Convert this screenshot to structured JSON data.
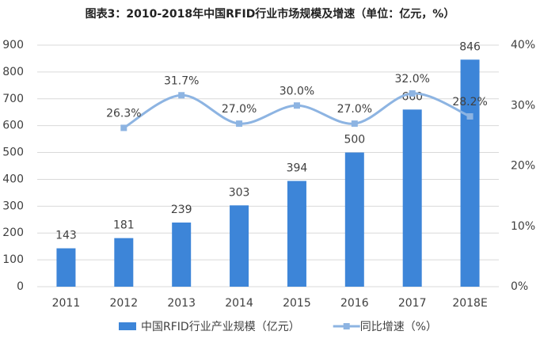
{
  "chart_data": {
    "type": "combo",
    "title": "图表3：2010-2018年中国RFID行业市场规模及增速（单位：亿元，%）",
    "categories": [
      "2011",
      "2012",
      "2013",
      "2014",
      "2015",
      "2016",
      "2017",
      "2018E"
    ],
    "series": [
      {
        "name": "中国RFID行业产业规模（亿元）",
        "type": "bar",
        "color": "#3d85d8",
        "values": [
          143,
          181,
          239,
          303,
          394,
          500,
          660,
          846
        ]
      },
      {
        "name": "同比增速（%）",
        "type": "line",
        "axis": "y2",
        "color": "#8db4e2",
        "values": [
          null,
          26.3,
          31.7,
          27.0,
          30.0,
          27.0,
          32.0,
          28.2
        ],
        "value_labels": [
          null,
          "26.3%",
          "31.7%",
          "27.0%",
          "30.0%",
          "27.0%",
          "32.0%",
          "28.2%"
        ]
      }
    ],
    "ylim": [
      0,
      900
    ],
    "yticks": [
      0,
      100,
      200,
      300,
      400,
      500,
      600,
      700,
      800,
      900
    ],
    "y2lim": [
      0,
      40
    ],
    "y2ticks": [
      {
        "value": 0,
        "label": "0%"
      },
      {
        "value": 10,
        "label": "10%"
      },
      {
        "value": 20,
        "label": "20%"
      },
      {
        "value": 30,
        "label": "30%"
      },
      {
        "value": 40,
        "label": "40%"
      }
    ],
    "grid": true
  }
}
